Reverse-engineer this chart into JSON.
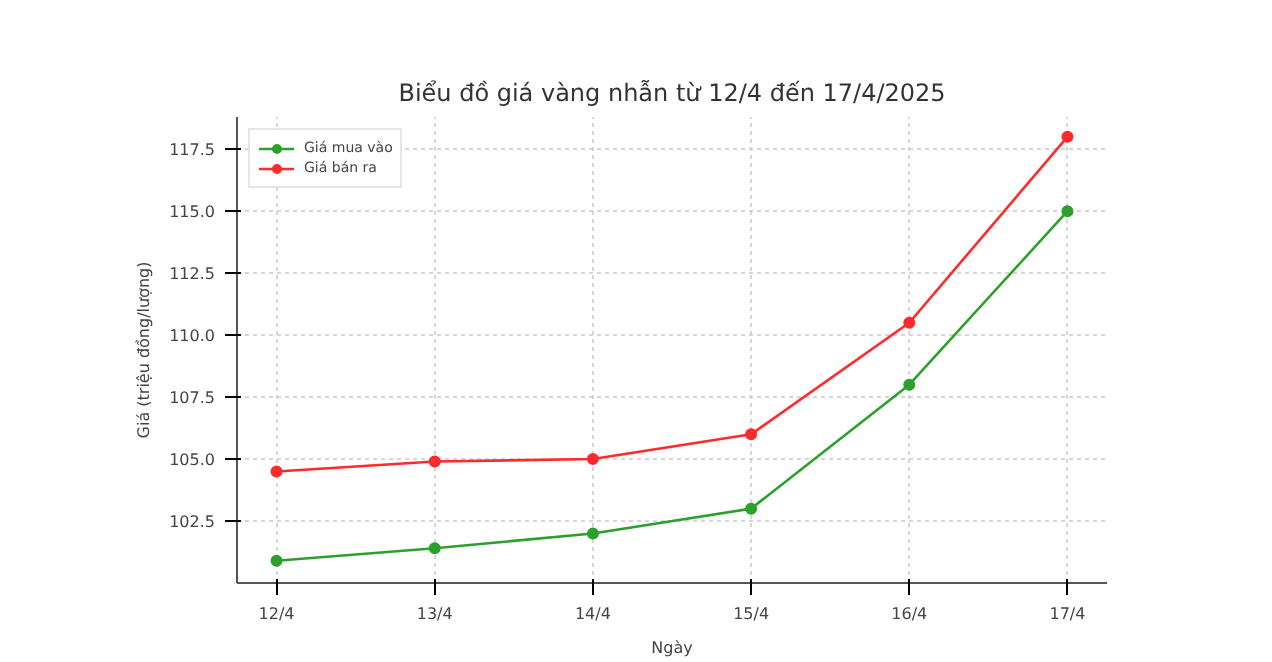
{
  "chart_data": {
    "type": "line",
    "title": "Biểu đồ giá vàng nhẫn từ 12/4 đến 17/4/2025",
    "xlabel": "Ngày",
    "ylabel": "Giá (triệu đồng/lượng)",
    "categories": [
      "12/4",
      "13/4",
      "14/4",
      "15/4",
      "16/4",
      "17/4"
    ],
    "series": [
      {
        "name": "Giá mua vào",
        "color": "#2ca02c",
        "values": [
          100.9,
          101.4,
          102.0,
          103.0,
          108.0,
          115.0
        ]
      },
      {
        "name": "Giá bán ra",
        "color": "#ff2a2a",
        "values": [
          104.5,
          104.9,
          105.0,
          106.0,
          110.5,
          118.0
        ]
      }
    ],
    "ylim": [
      100.0,
      118.8
    ],
    "yticks": [
      102.5,
      {
        "value": 105,
        "label": "105.0"
      },
      107.5,
      {
        "value": 110,
        "label": "110.0"
      },
      112.5,
      {
        "value": 115,
        "label": "115.0"
      },
      117.5
    ],
    "grid": true,
    "legend": "top left",
    "marker": "circle",
    "line_style": "solid"
  }
}
